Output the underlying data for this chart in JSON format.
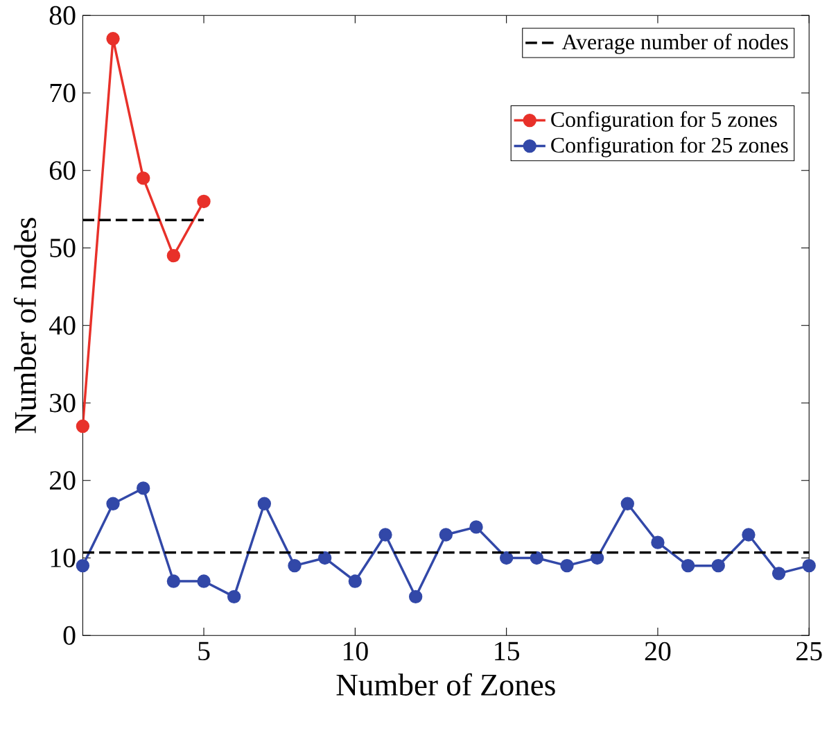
{
  "chart_data": {
    "type": "line",
    "xlabel": "Number of Zones",
    "ylabel": "Number of nodes",
    "xlim": [
      1,
      25
    ],
    "xticks": [
      5,
      10,
      15,
      20,
      25
    ],
    "ylim": [
      0,
      80
    ],
    "yticks": [
      0,
      10,
      20,
      30,
      40,
      50,
      60,
      70,
      80
    ],
    "legend": "top right",
    "grid": false,
    "series": [
      {
        "name": "Configuration for 5 zones",
        "color": "#e8312a",
        "x": [
          1,
          2,
          3,
          4,
          5
        ],
        "values": [
          27,
          77,
          59,
          49,
          56
        ],
        "line_style": "solid",
        "marker": "circle"
      },
      {
        "name": "Configuration for 25 zones",
        "color": "#3248a8",
        "x": [
          1,
          2,
          3,
          4,
          5,
          6,
          7,
          8,
          9,
          10,
          11,
          12,
          13,
          14,
          15,
          16,
          17,
          18,
          19,
          20,
          21,
          22,
          23,
          24,
          25
        ],
        "values": [
          9,
          17,
          19,
          7,
          7,
          5,
          17,
          9,
          10,
          7,
          13,
          5,
          13,
          14,
          10,
          10,
          9,
          10,
          17,
          12,
          9,
          9,
          13,
          8,
          9
        ],
        "line_style": "solid",
        "marker": "circle"
      },
      {
        "name": "Average number of nodes",
        "color": "#000000",
        "x": [
          1,
          5
        ],
        "values": [
          53.6,
          53.6
        ],
        "line_style": "dashed",
        "marker": "none"
      },
      {
        "color": "#000000",
        "x": [
          1,
          25
        ],
        "values": [
          10.7,
          10.7
        ],
        "line_style": "dashed",
        "marker": "none"
      }
    ]
  }
}
